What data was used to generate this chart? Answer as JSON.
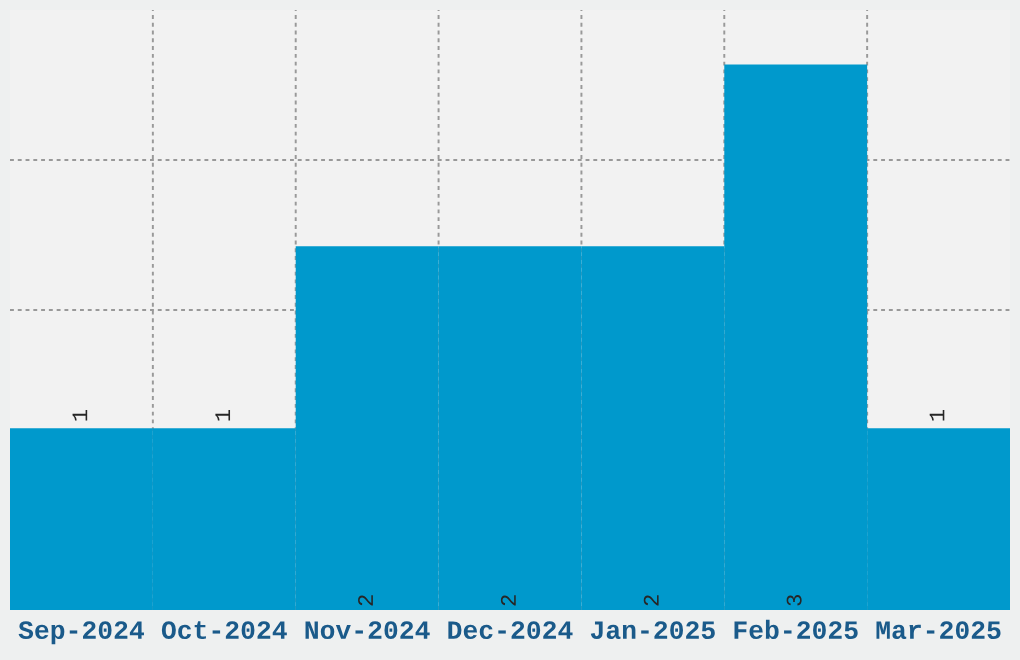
{
  "chart_data": {
    "type": "bar",
    "categories": [
      "Sep-2024",
      "Oct-2024",
      "Nov-2024",
      "Dec-2024",
      "Jan-2025",
      "Feb-2025",
      "Mar-2025"
    ],
    "values": [
      1,
      1,
      2,
      2,
      2,
      3,
      1
    ],
    "color": "#0099cc",
    "ylim": [
      0,
      3.3
    ],
    "tick_labels": "x",
    "grid": true,
    "data_labels": true
  }
}
